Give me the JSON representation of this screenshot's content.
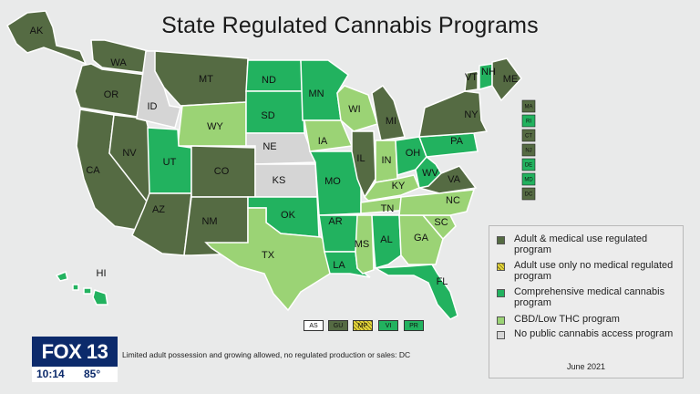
{
  "title": "State Regulated Cannabis Programs",
  "colors": {
    "adult": "#556b43",
    "adult_only": "#e5d63b",
    "comprehensive": "#22b25f",
    "cbd": "#9bd375",
    "none": "#d5d5d5"
  },
  "states": [
    {
      "abbr": "AK",
      "status": "adult"
    },
    {
      "abbr": "WA",
      "status": "adult"
    },
    {
      "abbr": "OR",
      "status": "adult"
    },
    {
      "abbr": "CA",
      "status": "adult"
    },
    {
      "abbr": "NV",
      "status": "adult"
    },
    {
      "abbr": "ID",
      "status": "none"
    },
    {
      "abbr": "MT",
      "status": "adult"
    },
    {
      "abbr": "WY",
      "status": "cbd"
    },
    {
      "abbr": "UT",
      "status": "comprehensive"
    },
    {
      "abbr": "AZ",
      "status": "adult"
    },
    {
      "abbr": "CO",
      "status": "adult"
    },
    {
      "abbr": "NM",
      "status": "adult"
    },
    {
      "abbr": "ND",
      "status": "comprehensive"
    },
    {
      "abbr": "SD",
      "status": "comprehensive"
    },
    {
      "abbr": "NE",
      "status": "none"
    },
    {
      "abbr": "KS",
      "status": "none"
    },
    {
      "abbr": "OK",
      "status": "comprehensive"
    },
    {
      "abbr": "TX",
      "status": "cbd"
    },
    {
      "abbr": "MN",
      "status": "comprehensive"
    },
    {
      "abbr": "IA",
      "status": "cbd"
    },
    {
      "abbr": "MO",
      "status": "comprehensive"
    },
    {
      "abbr": "AR",
      "status": "comprehensive"
    },
    {
      "abbr": "LA",
      "status": "comprehensive"
    },
    {
      "abbr": "WI",
      "status": "cbd"
    },
    {
      "abbr": "IL",
      "status": "adult"
    },
    {
      "abbr": "MS",
      "status": "cbd"
    },
    {
      "abbr": "MI",
      "status": "adult"
    },
    {
      "abbr": "IN",
      "status": "cbd"
    },
    {
      "abbr": "KY",
      "status": "cbd"
    },
    {
      "abbr": "TN",
      "status": "cbd"
    },
    {
      "abbr": "AL",
      "status": "comprehensive"
    },
    {
      "abbr": "OH",
      "status": "comprehensive"
    },
    {
      "abbr": "GA",
      "status": "cbd"
    },
    {
      "abbr": "FL",
      "status": "comprehensive"
    },
    {
      "abbr": "SC",
      "status": "cbd"
    },
    {
      "abbr": "NC",
      "status": "cbd"
    },
    {
      "abbr": "VA",
      "status": "adult"
    },
    {
      "abbr": "WV",
      "status": "comprehensive"
    },
    {
      "abbr": "PA",
      "status": "comprehensive"
    },
    {
      "abbr": "NY",
      "status": "adult"
    },
    {
      "abbr": "VT",
      "status": "adult"
    },
    {
      "abbr": "NH",
      "status": "comprehensive"
    },
    {
      "abbr": "ME",
      "status": "adult"
    },
    {
      "abbr": "HI",
      "status": "comprehensive"
    }
  ],
  "small_states": [
    {
      "abbr": "MA",
      "status": "adult"
    },
    {
      "abbr": "RI",
      "status": "comprehensive"
    },
    {
      "abbr": "CT",
      "status": "adult"
    },
    {
      "abbr": "NJ",
      "status": "adult"
    },
    {
      "abbr": "DE",
      "status": "comprehensive"
    },
    {
      "abbr": "MD",
      "status": "comprehensive"
    },
    {
      "abbr": "DC",
      "status": "adult"
    }
  ],
  "territories": [
    {
      "abbr": "AS",
      "status": "none"
    },
    {
      "abbr": "GU",
      "status": "adult"
    },
    {
      "abbr": "MP",
      "status": "adult_only"
    },
    {
      "abbr": "VI",
      "status": "comprehensive"
    },
    {
      "abbr": "PR",
      "status": "comprehensive"
    }
  ],
  "legend": [
    {
      "key": "adult",
      "label": "Adult & medical use regulated program"
    },
    {
      "key": "adult_only",
      "label": "Adult use only no medical regulated program"
    },
    {
      "key": "comprehensive",
      "label": "Comprehensive medical cannabis program"
    },
    {
      "key": "cbd",
      "label": "CBD/Low THC program"
    },
    {
      "key": "none",
      "label": "No public cannabis access program"
    }
  ],
  "footnote": "Limited adult possession and growing allowed, no regulated production or sales: DC",
  "date": "June 2021",
  "bug": {
    "logo": "FOX 13",
    "time": "10:14",
    "temp": "85°"
  }
}
